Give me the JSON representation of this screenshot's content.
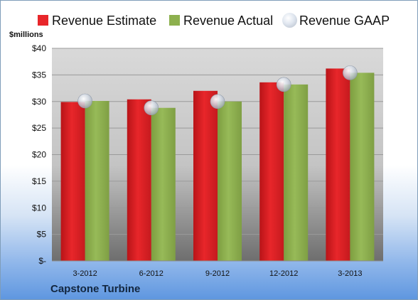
{
  "chart_data": {
    "type": "bar",
    "title": "",
    "units_label": "$millions",
    "footer": "Capstone Turbine",
    "categories": [
      "3-2012",
      "6-2012",
      "9-2012",
      "12-2012",
      "3-2013"
    ],
    "series": [
      {
        "name": "Revenue Estimate",
        "type": "bar",
        "color": "#e8262a",
        "values": [
          29.9,
          30.4,
          32.0,
          33.6,
          36.2
        ]
      },
      {
        "name": "Revenue Actual",
        "type": "bar",
        "color": "#8db04e",
        "values": [
          30.1,
          28.8,
          30.0,
          33.2,
          35.4
        ]
      },
      {
        "name": "Revenue GAAP",
        "type": "marker",
        "color": "#c8d0dc",
        "values": [
          30.1,
          28.8,
          30.0,
          33.2,
          35.4
        ]
      }
    ],
    "ylim": [
      0,
      40
    ],
    "yticks": [
      0,
      5,
      10,
      15,
      20,
      25,
      30,
      35,
      40
    ],
    "ytick_labels": [
      "$-",
      "$5",
      "$10",
      "$15",
      "$20",
      "$25",
      "$30",
      "$35",
      "$40"
    ],
    "grid": true,
    "legend_position": "top"
  }
}
